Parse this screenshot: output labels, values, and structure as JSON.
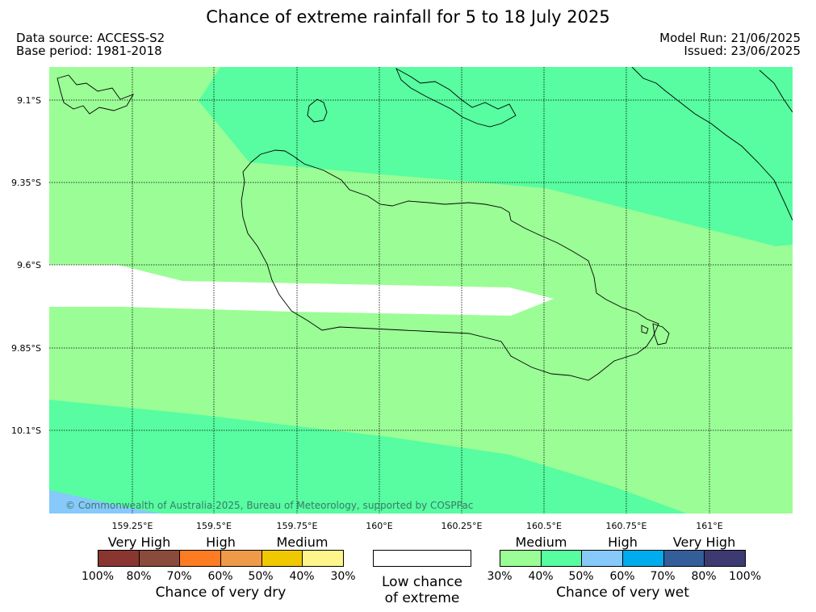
{
  "title": "Chance of extreme rainfall for 5 to 18 July 2025",
  "data_source": "Data source: ACCESS-S2",
  "base_period": "Base period: 1981-2018",
  "model_run": "Model Run: 21/06/2025",
  "issued": "Issued: 23/06/2025",
  "map": {
    "lat_ticks": [
      "9.1°S",
      "9.35°S",
      "9.6°S",
      "9.85°S",
      "10.1°S"
    ],
    "lon_ticks": [
      "159.25°E",
      "159.5°E",
      "159.75°E",
      "160°E",
      "160.25°E",
      "160.5°E",
      "160.75°E",
      "161°E"
    ],
    "copyright": "© Commonwealth of Australia 2025, Bureau of Meteorology, supported by COSPPac",
    "region_colors": {
      "medium_30_40": "#9bfd96",
      "medium_40_50": "#57fda0",
      "high_50_60": "#86c9fa",
      "low_chance": "#ffffff"
    }
  },
  "legend": {
    "dry": {
      "categories": [
        "Very High",
        "High",
        "Medium"
      ],
      "colors": [
        "#8a3630",
        "#8a4b3c",
        "#fd7b22",
        "#ef9a48",
        "#f0c800",
        "#fef58c"
      ],
      "ticks": [
        "100%",
        "80%",
        "70%",
        "60%",
        "50%",
        "40%",
        "30%"
      ],
      "caption": "Chance of very dry"
    },
    "low": {
      "color": "#ffffff",
      "caption_line1": "Low chance",
      "caption_line2": "of extreme"
    },
    "wet": {
      "categories": [
        "Medium",
        "High",
        "Very High"
      ],
      "colors": [
        "#9bfd96",
        "#57fda0",
        "#86c9fa",
        "#00aced",
        "#345e99",
        "#3d3a72"
      ],
      "ticks": [
        "30%",
        "40%",
        "50%",
        "60%",
        "70%",
        "80%",
        "100%"
      ],
      "caption": "Chance of very wet"
    }
  }
}
